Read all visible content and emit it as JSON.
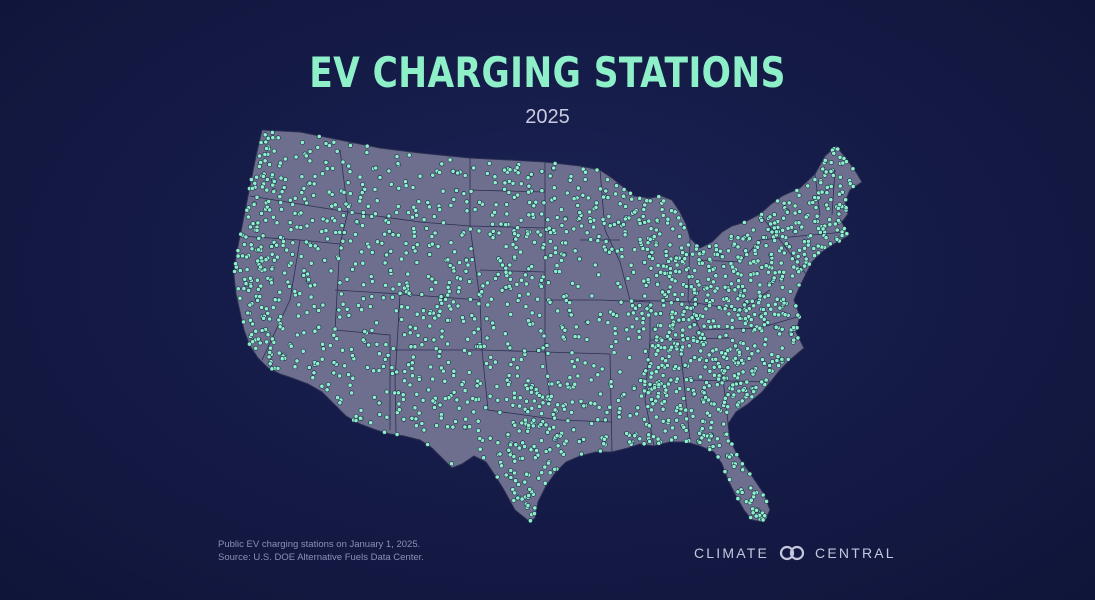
{
  "title": "EV CHARGING STATIONS",
  "subtitle": "2025",
  "footnote": {
    "line1": "Public EV charging stations on January 1, 2025.",
    "line2": "Source: U.S. DOE Alternative Fuels Data Center."
  },
  "brand": {
    "left": "CLIMATE",
    "right": "CENTRAL",
    "logo_icon": "linked-rings-icon"
  },
  "colors": {
    "background": "#141a45",
    "land": "#6e6f8f",
    "borders": "#2c2f52",
    "station_dot": "#8ef0c8",
    "title": "#8ef0c8"
  },
  "map": {
    "region": "Contiguous United States",
    "marker_icon": "charging-station-dot-icon"
  }
}
